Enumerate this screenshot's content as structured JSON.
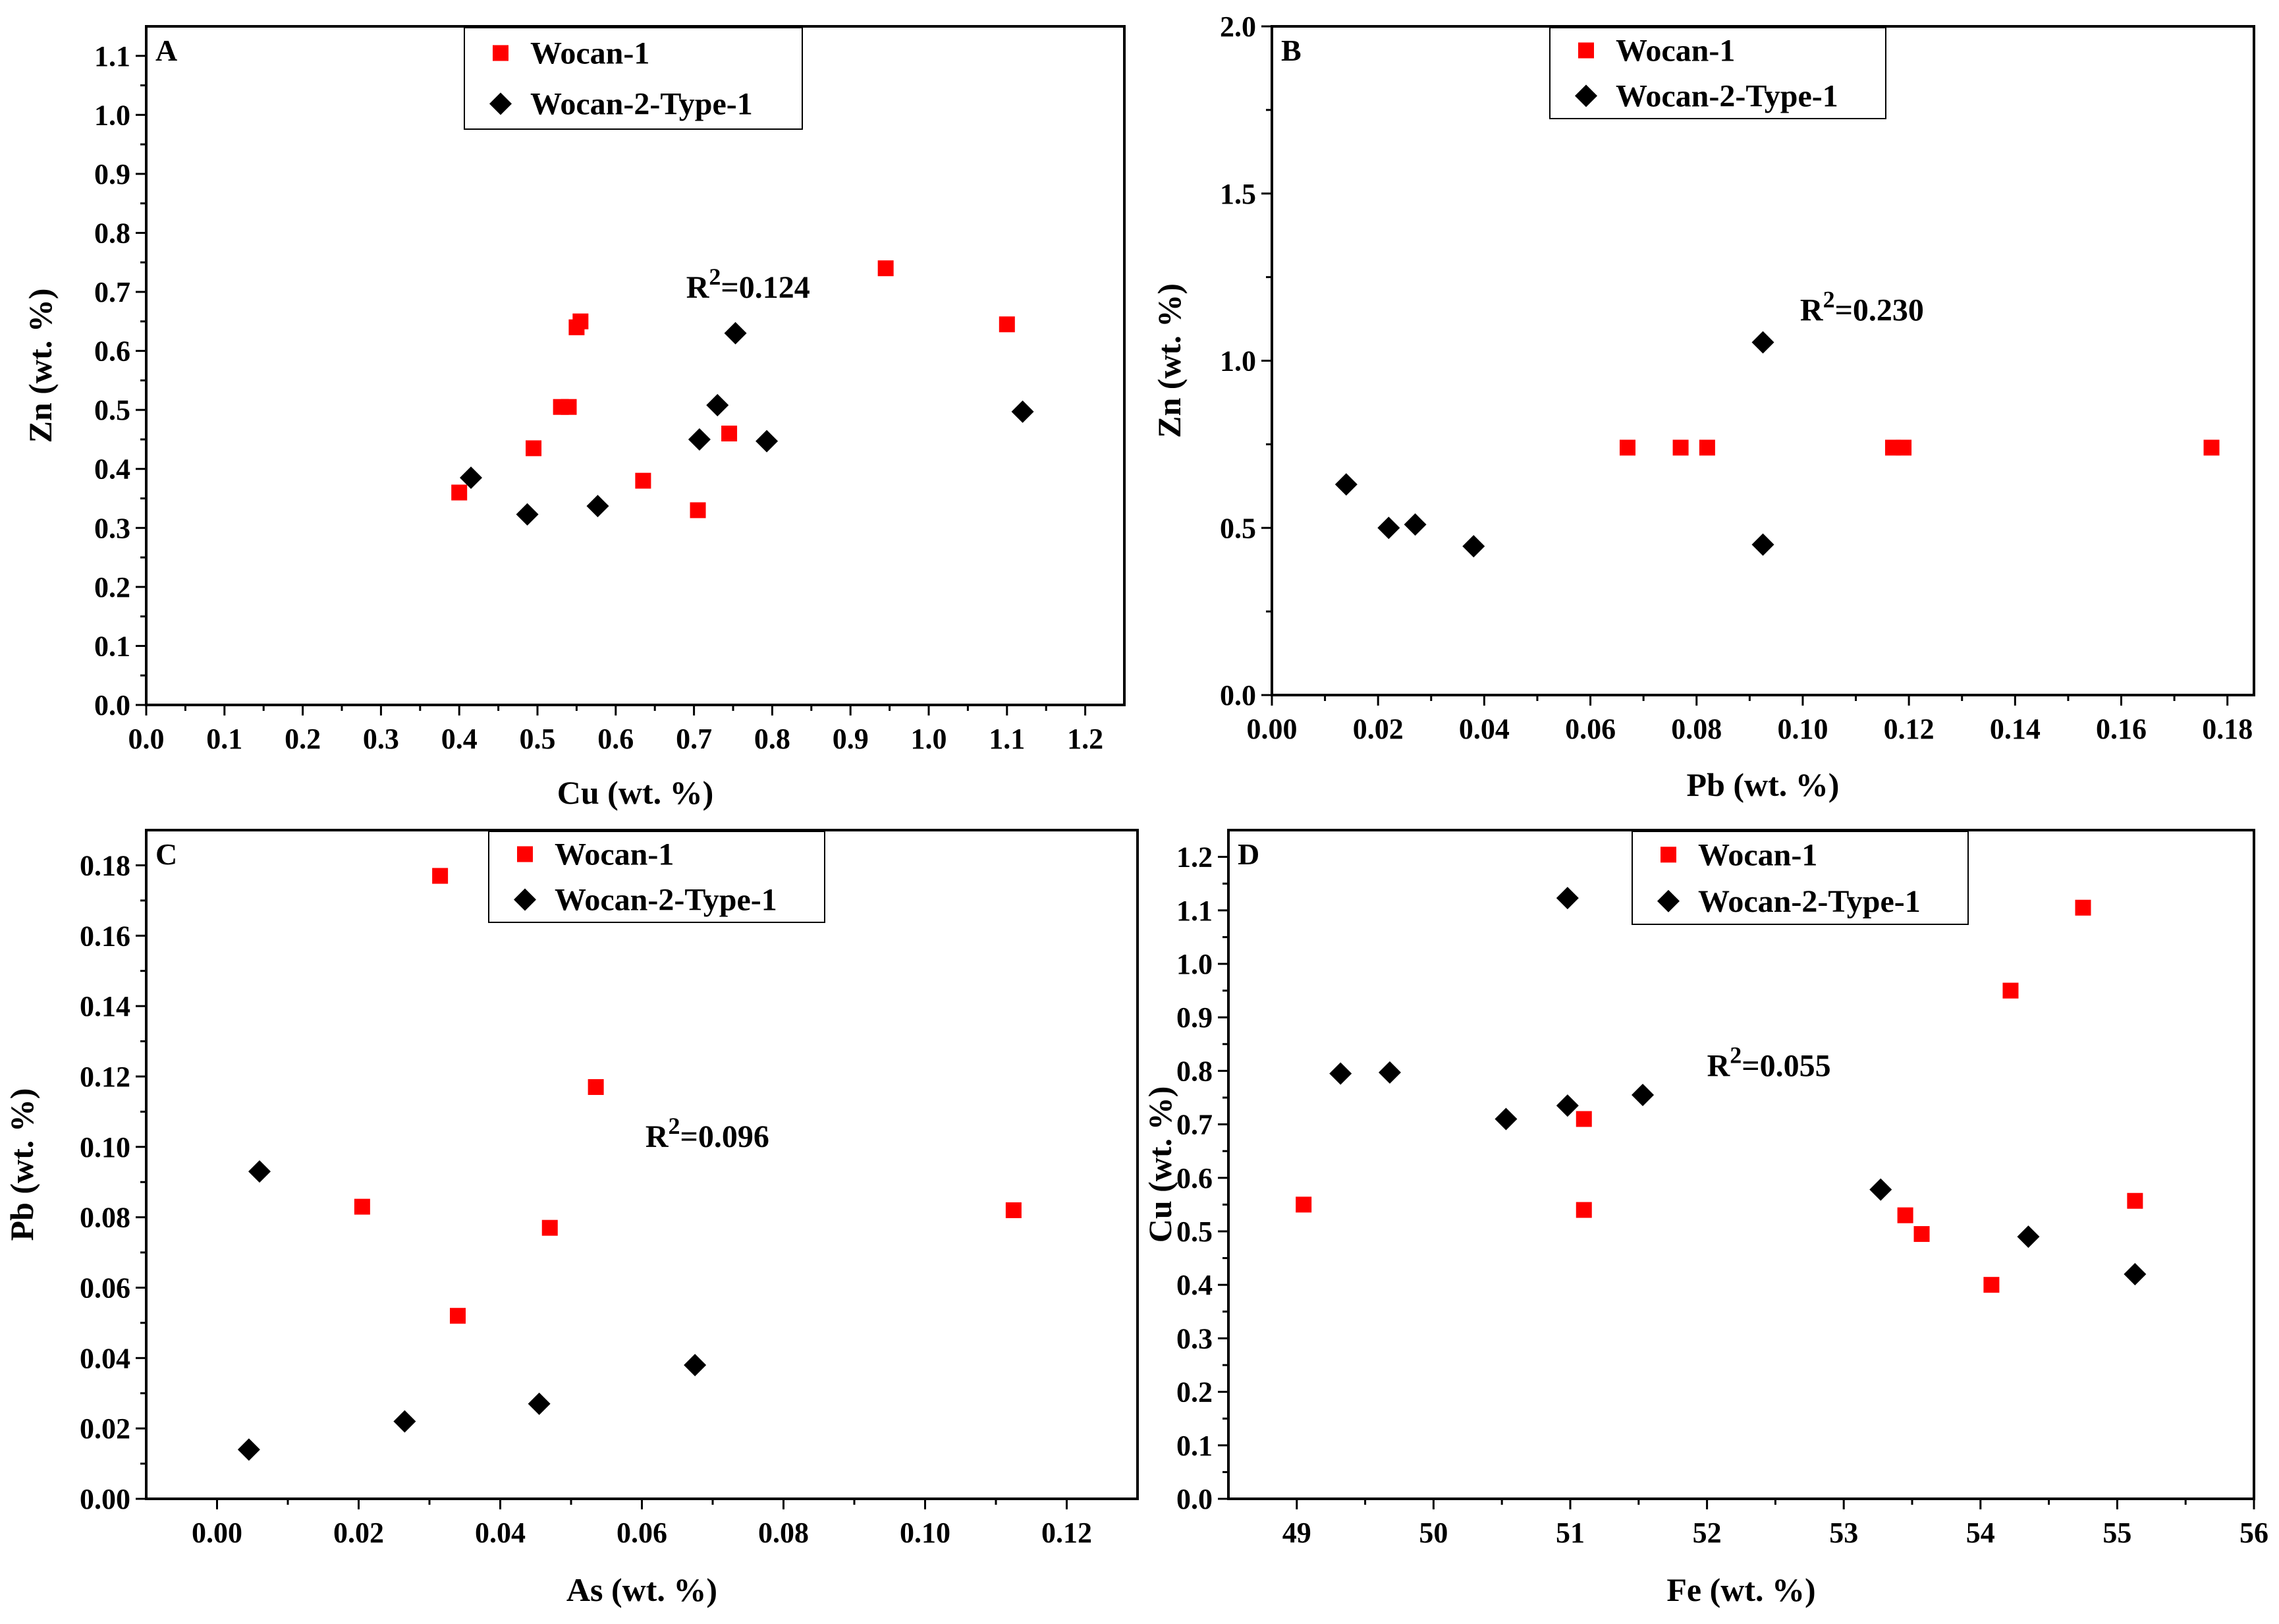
{
  "chart_data": [
    {
      "type": "scatter",
      "panel": "A",
      "xlabel": "Cu (wt. %)",
      "ylabel": "Zn (wt. %)",
      "xlim": [
        0,
        1.25
      ],
      "ylim": [
        0,
        1.15
      ],
      "xticks": [
        0.0,
        0.1,
        0.2,
        0.3,
        0.4,
        0.5,
        0.6,
        0.7,
        0.8,
        0.9,
        1.0,
        1.1,
        1.2
      ],
      "yticks": [
        0.0,
        0.1,
        0.2,
        0.3,
        0.4,
        0.5,
        0.6,
        0.7,
        0.8,
        0.9,
        1.0,
        1.1
      ],
      "xdecimals": 1,
      "ydecimals": 1,
      "annotation": {
        "pre": "R",
        "sup": "2",
        "post": "=0.124",
        "x": 0.69,
        "y": 0.69
      },
      "legend_position": "top-center",
      "series": [
        {
          "name": "Wocan-1",
          "marker": "square",
          "color": "#ff0000",
          "points": [
            [
              0.4,
              0.36
            ],
            [
              0.495,
              0.435
            ],
            [
              0.53,
              0.505
            ],
            [
              0.54,
              0.505
            ],
            [
              0.55,
              0.64
            ],
            [
              0.555,
              0.65
            ],
            [
              0.635,
              0.38
            ],
            [
              0.705,
              0.33
            ],
            [
              0.745,
              0.46
            ],
            [
              0.945,
              0.74
            ],
            [
              1.1,
              0.645
            ]
          ]
        },
        {
          "name": "Wocan-2-Type-1",
          "marker": "diamond",
          "color": "#000000",
          "points": [
            [
              0.415,
              0.385
            ],
            [
              0.487,
              0.323
            ],
            [
              0.577,
              0.337
            ],
            [
              0.707,
              0.45
            ],
            [
              0.73,
              0.508
            ],
            [
              0.753,
              0.63
            ],
            [
              0.793,
              0.447
            ],
            [
              1.12,
              0.497
            ]
          ]
        }
      ]
    },
    {
      "type": "scatter",
      "panel": "B",
      "xlabel": "Pb (wt. %)",
      "ylabel": "Zn (wt. %)",
      "xlim": [
        0,
        0.185
      ],
      "ylim": [
        0,
        2.0
      ],
      "xticks": [
        0.0,
        0.02,
        0.04,
        0.06,
        0.08,
        0.1,
        0.12,
        0.14,
        0.16,
        0.18
      ],
      "yticks": [
        0.0,
        0.5,
        1.0,
        1.5,
        2.0
      ],
      "xdecimals": 2,
      "ydecimals": 1,
      "annotation": {
        "pre": "R",
        "sup": "2",
        "post": "=0.230",
        "x": 0.0995,
        "y": 1.12
      },
      "legend_position": "top-center",
      "series": [
        {
          "name": "Wocan-1",
          "marker": "square",
          "color": "#ff0000",
          "points": [
            [
              0.067,
              0.74
            ],
            [
              0.077,
              0.74
            ],
            [
              0.082,
              0.74
            ],
            [
              0.117,
              0.74
            ],
            [
              0.119,
              0.74
            ],
            [
              0.177,
              0.74
            ]
          ]
        },
        {
          "name": "Wocan-2-Type-1",
          "marker": "diamond",
          "color": "#000000",
          "points": [
            [
              0.014,
              0.63
            ],
            [
              0.022,
              0.5
            ],
            [
              0.027,
              0.51
            ],
            [
              0.038,
              0.445
            ],
            [
              0.0925,
              1.055
            ],
            [
              0.0925,
              0.45
            ]
          ]
        }
      ]
    },
    {
      "type": "scatter",
      "panel": "C",
      "xlabel": "As (wt. %)",
      "ylabel": "Pb (wt. %)",
      "xlim": [
        -0.01,
        0.13
      ],
      "ylim": [
        0,
        0.19
      ],
      "xticks": [
        0.0,
        0.02,
        0.04,
        0.06,
        0.08,
        0.1,
        0.12
      ],
      "yticks": [
        0.0,
        0.02,
        0.04,
        0.06,
        0.08,
        0.1,
        0.12,
        0.14,
        0.16,
        0.18
      ],
      "xdecimals": 2,
      "ydecimals": 2,
      "annotation": {
        "pre": "R",
        "sup": "2",
        "post": "=0.096",
        "x": 0.0605,
        "y": 0.1
      },
      "legend_position": "top-center",
      "series": [
        {
          "name": "Wocan-1",
          "marker": "square",
          "color": "#ff0000",
          "points": [
            [
              0.0315,
              0.177
            ],
            [
              0.0205,
              0.083
            ],
            [
              0.034,
              0.052
            ],
            [
              0.047,
              0.077
            ],
            [
              0.0535,
              0.117
            ],
            [
              0.1125,
              0.082
            ]
          ]
        },
        {
          "name": "Wocan-2-Type-1",
          "marker": "diamond",
          "color": "#000000",
          "points": [
            [
              0.0045,
              0.014
            ],
            [
              0.006,
              0.093
            ],
            [
              0.0265,
              0.022
            ],
            [
              0.0455,
              0.027
            ],
            [
              0.0675,
              0.038
            ]
          ]
        }
      ]
    },
    {
      "type": "scatter",
      "panel": "D",
      "xlabel": "Fe (wt. %)",
      "ylabel": "Cu (wt. %)",
      "xlim": [
        48.5,
        56
      ],
      "ylim": [
        0,
        1.25
      ],
      "xticks": [
        49,
        50,
        51,
        52,
        53,
        54,
        55,
        56
      ],
      "yticks": [
        0.0,
        0.1,
        0.2,
        0.3,
        0.4,
        0.5,
        0.6,
        0.7,
        0.8,
        0.9,
        1.0,
        1.1,
        1.2
      ],
      "xdecimals": 0,
      "ydecimals": 1,
      "annotation": {
        "pre": "R",
        "sup": "2",
        "post": "=0.055",
        "x": 52.0,
        "y": 0.79
      },
      "legend_position": "top-center",
      "series": [
        {
          "name": "Wocan-1",
          "marker": "square",
          "color": "#ff0000",
          "points": [
            [
              49.05,
              0.55
            ],
            [
              51.1,
              0.71
            ],
            [
              51.1,
              0.54
            ],
            [
              53.45,
              0.53
            ],
            [
              53.57,
              0.495
            ],
            [
              54.08,
              0.4
            ],
            [
              54.22,
              0.95
            ],
            [
              54.75,
              1.105
            ],
            [
              55.13,
              0.557
            ]
          ]
        },
        {
          "name": "Wocan-2-Type-1",
          "marker": "diamond",
          "color": "#000000",
          "points": [
            [
              49.32,
              0.795
            ],
            [
              49.68,
              0.797
            ],
            [
              50.53,
              0.71
            ],
            [
              50.98,
              0.735
            ],
            [
              50.98,
              1.123
            ],
            [
              51.53,
              0.755
            ],
            [
              53.27,
              0.578
            ],
            [
              54.35,
              0.49
            ],
            [
              55.13,
              0.42
            ]
          ]
        }
      ]
    }
  ]
}
